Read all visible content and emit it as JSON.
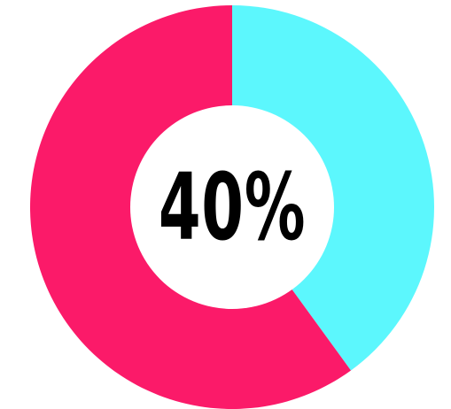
{
  "chart_data": {
    "type": "pie",
    "title": "",
    "center_label": "40%",
    "slices": [
      {
        "label": "",
        "value": 40,
        "color": "#5cf7fd"
      },
      {
        "label": "",
        "value": 60,
        "color": "#fb1a69"
      }
    ]
  },
  "colors": {
    "background": "#ffffff",
    "hole": "#ffffff",
    "text": "#000000"
  }
}
